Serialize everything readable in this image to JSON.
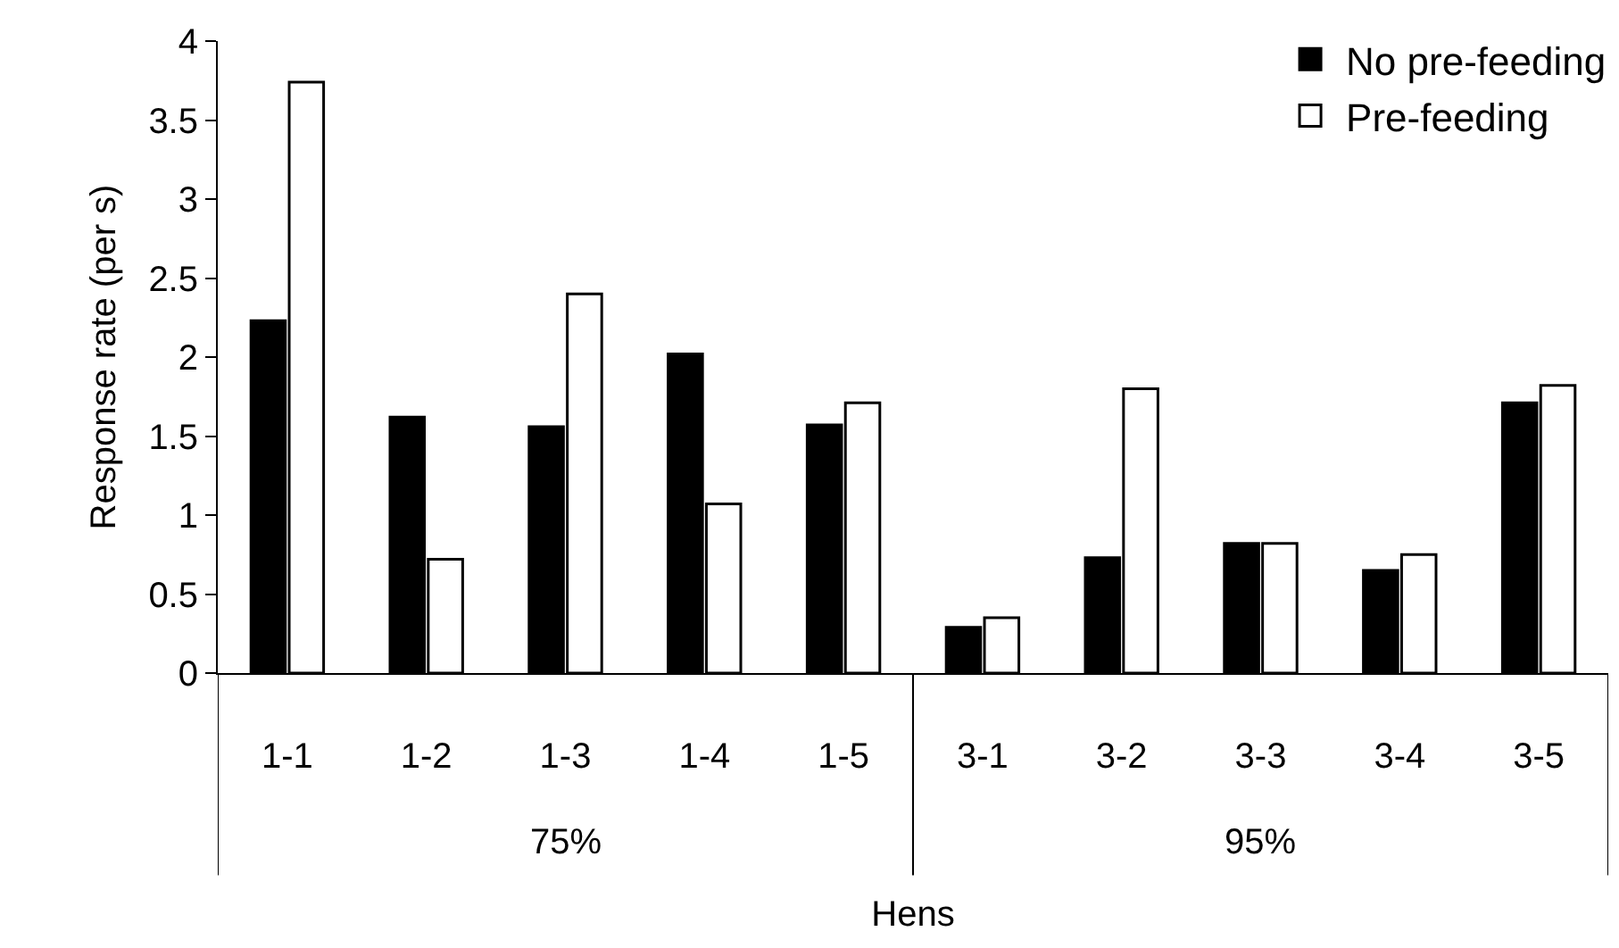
{
  "chart_data": {
    "type": "bar",
    "xlabel": "Hens",
    "ylabel": "Response rate (per s)",
    "categories": [
      "1-1",
      "1-2",
      "1-3",
      "1-4",
      "1-5",
      "3-1",
      "3-2",
      "3-3",
      "3-4",
      "3-5"
    ],
    "series": [
      {
        "name": "No pre-feeding",
        "color": "#000000",
        "values": [
          2.23,
          1.62,
          1.56,
          2.02,
          1.57,
          0.29,
          0.73,
          0.82,
          0.65,
          1.71
        ]
      },
      {
        "name": "Pre-feeding",
        "color": "#ffffff",
        "values": [
          3.74,
          0.72,
          2.4,
          1.07,
          1.71,
          0.35,
          1.8,
          0.82,
          0.75,
          1.82
        ]
      }
    ],
    "annotations": [
      "75%",
      "95%"
    ],
    "ylim": [
      0,
      4
    ],
    "yticks": [
      0,
      0.5,
      1,
      1.5,
      2,
      2.5,
      3,
      3.5,
      4
    ],
    "grid": false,
    "legend": "top right"
  }
}
